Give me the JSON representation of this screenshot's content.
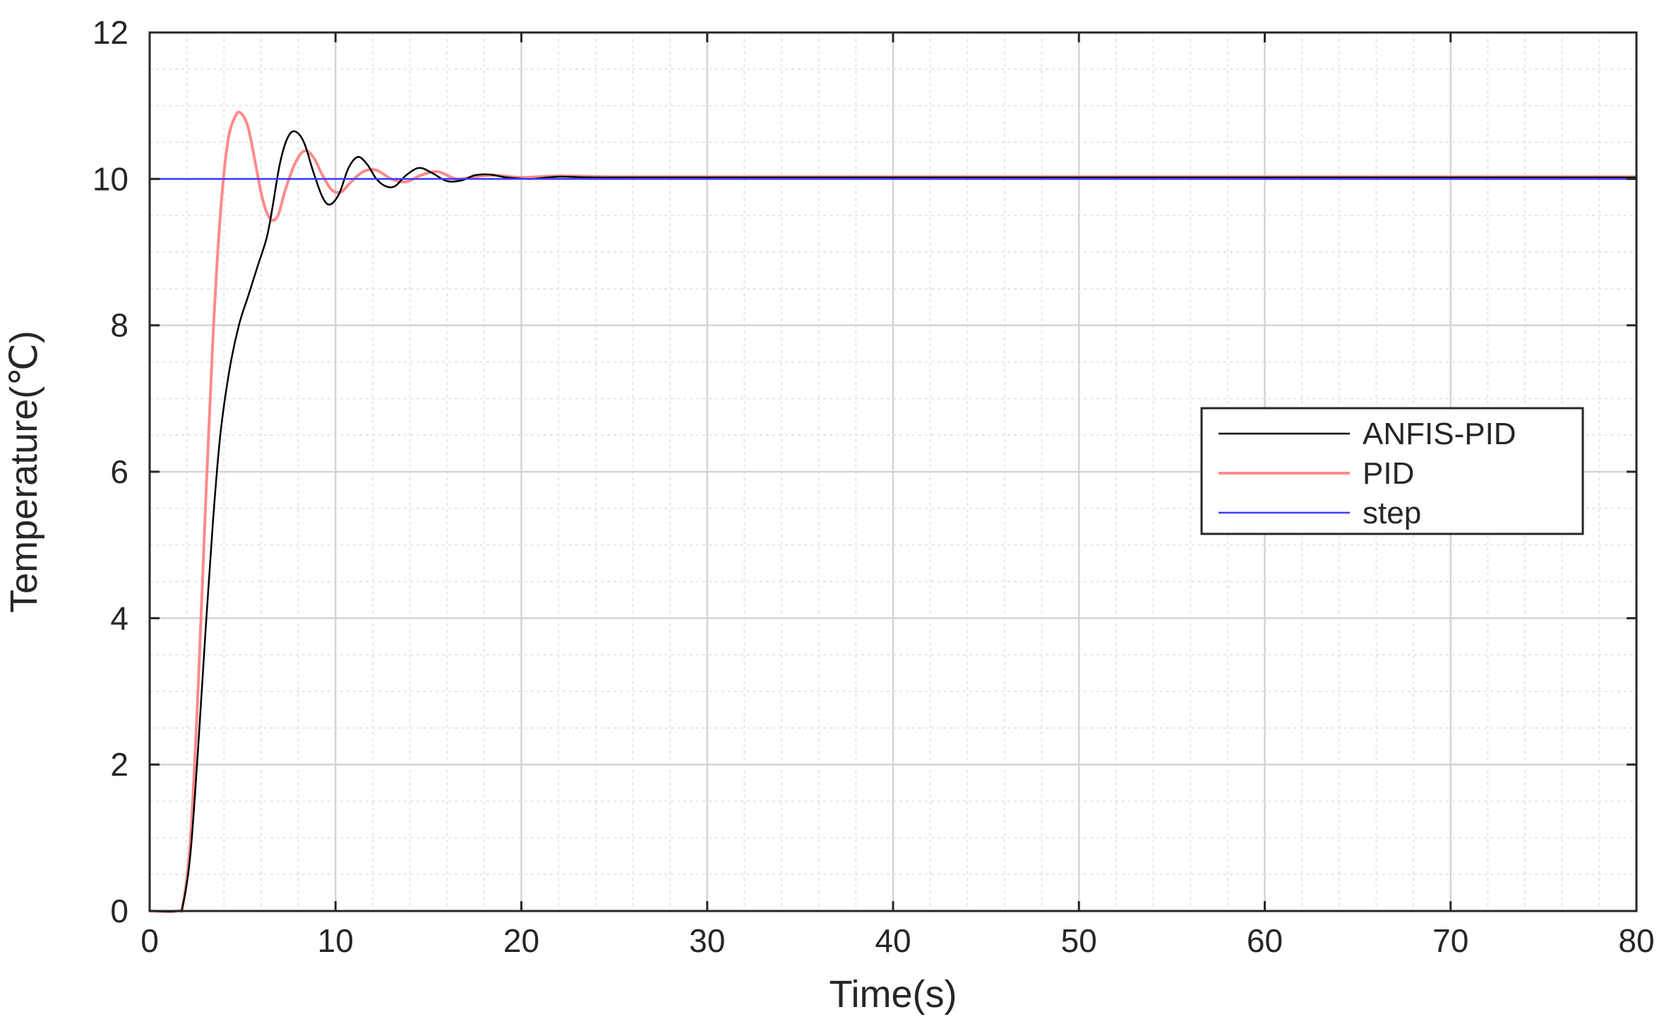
{
  "chart_data": {
    "type": "line",
    "xlabel": "Time(s)",
    "ylabel": "Temperature(℃)",
    "xlim": [
      0,
      80
    ],
    "ylim": [
      0,
      12
    ],
    "xticks": [
      "0",
      "10",
      "20",
      "30",
      "40",
      "50",
      "60",
      "70",
      "80"
    ],
    "yticks": [
      "0",
      "2",
      "4",
      "6",
      "8",
      "10",
      "12"
    ],
    "grid": true,
    "minor_grid": true,
    "legend_position": "right-middle",
    "series": [
      {
        "name": "ANFIS-PID",
        "color": "#000000",
        "points": [
          [
            0,
            0
          ],
          [
            1.5,
            0
          ],
          [
            1.8,
            0.1
          ],
          [
            2.2,
            0.8
          ],
          [
            2.6,
            2.2
          ],
          [
            3.0,
            3.8
          ],
          [
            3.4,
            5.3
          ],
          [
            3.8,
            6.5
          ],
          [
            4.3,
            7.4
          ],
          [
            4.8,
            8.0
          ],
          [
            5.3,
            8.4
          ],
          [
            5.8,
            8.8
          ],
          [
            6.3,
            9.2
          ],
          [
            6.6,
            9.6
          ],
          [
            7.0,
            10.2
          ],
          [
            7.4,
            10.55
          ],
          [
            7.8,
            10.65
          ],
          [
            8.3,
            10.5
          ],
          [
            8.8,
            10.1
          ],
          [
            9.3,
            9.75
          ],
          [
            9.7,
            9.65
          ],
          [
            10.2,
            9.8
          ],
          [
            10.7,
            10.15
          ],
          [
            11.2,
            10.3
          ],
          [
            11.7,
            10.2
          ],
          [
            12.2,
            10.0
          ],
          [
            12.7,
            9.9
          ],
          [
            13.2,
            9.9
          ],
          [
            13.8,
            10.05
          ],
          [
            14.5,
            10.15
          ],
          [
            15.2,
            10.08
          ],
          [
            16.0,
            9.97
          ],
          [
            16.8,
            9.98
          ],
          [
            17.5,
            10.05
          ],
          [
            18.3,
            10.06
          ],
          [
            19.2,
            10.02
          ],
          [
            20.5,
            10.0
          ],
          [
            22,
            10.03
          ],
          [
            24,
            10.02
          ],
          [
            30,
            10.02
          ],
          [
            80,
            10.02
          ]
        ]
      },
      {
        "name": "PID",
        "color": "#ff8a8a",
        "points": [
          [
            0,
            0
          ],
          [
            1.5,
            0
          ],
          [
            1.8,
            0.1
          ],
          [
            2.2,
            1.0
          ],
          [
            2.6,
            3.0
          ],
          [
            3.0,
            5.5
          ],
          [
            3.4,
            7.8
          ],
          [
            3.8,
            9.5
          ],
          [
            4.2,
            10.5
          ],
          [
            4.6,
            10.85
          ],
          [
            4.9,
            10.9
          ],
          [
            5.3,
            10.7
          ],
          [
            5.7,
            10.2
          ],
          [
            6.1,
            9.7
          ],
          [
            6.5,
            9.45
          ],
          [
            6.9,
            9.5
          ],
          [
            7.3,
            9.85
          ],
          [
            7.8,
            10.2
          ],
          [
            8.3,
            10.38
          ],
          [
            8.8,
            10.3
          ],
          [
            9.3,
            10.05
          ],
          [
            9.8,
            9.85
          ],
          [
            10.3,
            9.82
          ],
          [
            10.8,
            9.95
          ],
          [
            11.5,
            10.1
          ],
          [
            12.2,
            10.12
          ],
          [
            13.0,
            10.0
          ],
          [
            13.8,
            9.96
          ],
          [
            14.6,
            10.05
          ],
          [
            15.5,
            10.1
          ],
          [
            16.5,
            10.0
          ],
          [
            17.5,
            10.03
          ],
          [
            18.5,
            10.05
          ],
          [
            20,
            10.02
          ],
          [
            22,
            10.04
          ],
          [
            25,
            10.03
          ],
          [
            30,
            10.03
          ],
          [
            80,
            10.03
          ]
        ]
      },
      {
        "name": "step",
        "color": "#3b3bff",
        "points": [
          [
            0,
            10
          ],
          [
            80,
            10
          ]
        ]
      }
    ]
  }
}
